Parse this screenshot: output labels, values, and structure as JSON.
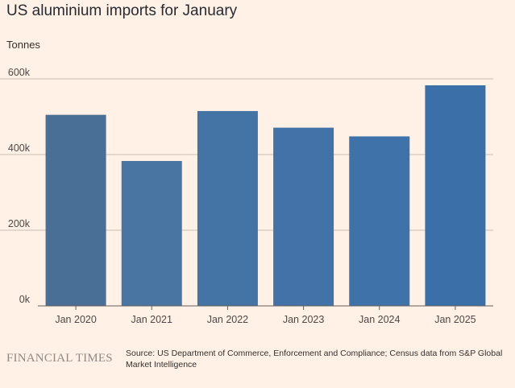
{
  "title": "US aluminium imports for January",
  "subtitle": "Tonnes",
  "brand": "FINANCIAL TIMES",
  "source": "Source: US Department of Commerce, Enforcement and Compliance; Census data from S&P Global Market Intelligence",
  "colors": {
    "background": "#FFF1E5",
    "gridline": "#C9BFB5",
    "baseline": "#66605C",
    "bar_fills": [
      "#4A6F96",
      "#4975A3",
      "#4474A6",
      "#4272A7",
      "#3F72A9",
      "#3B6FA8"
    ]
  },
  "chart_data": {
    "type": "bar",
    "title": "US aluminium imports for January",
    "ylabel": "Tonnes",
    "xlabel": "",
    "categories": [
      "Jan 2020",
      "Jan 2021",
      "Jan 2022",
      "Jan 2023",
      "Jan 2024",
      "Jan 2025"
    ],
    "values": [
      505000,
      383000,
      515000,
      471000,
      448000,
      583000
    ],
    "ylim": [
      0,
      600000
    ],
    "yticks": [
      0,
      200000,
      400000,
      600000
    ],
    "ytick_labels": [
      "0k",
      "200k",
      "400k",
      "600k"
    ],
    "grid": true,
    "legend": "none"
  }
}
